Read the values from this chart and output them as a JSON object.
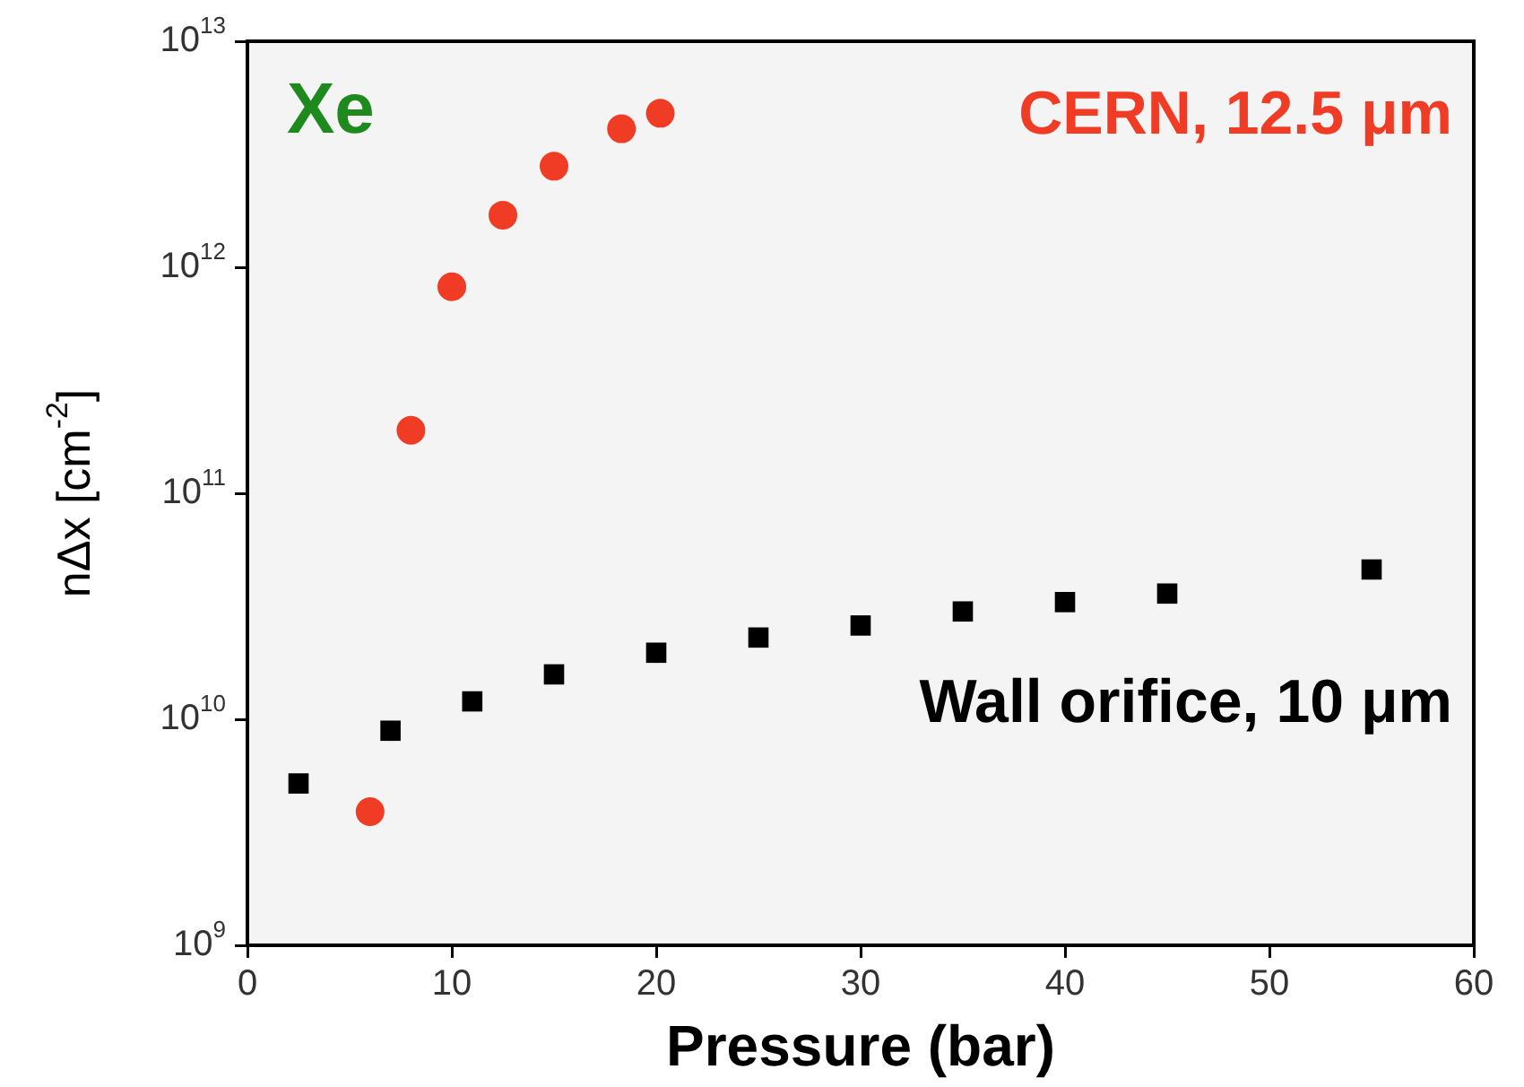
{
  "chart_data": {
    "type": "scatter",
    "xlabel": "Pressure (bar)",
    "ylabel": "nΔx [cm$^{-2}$]",
    "log": "y",
    "grid": false,
    "legend": false,
    "annotations": [
      "Xe"
    ],
    "xlim": [
      0,
      60
    ],
    "xticks": [
      0,
      10,
      20,
      30,
      40,
      50,
      60
    ],
    "ylim": [
      1000000000.0,
      10000000000000.0
    ],
    "yticks": [
      {
        "value": 1000000000.0,
        "label": "10$^{9}$"
      },
      {
        "value": 10000000000.0,
        "label": "10$^{10}$"
      },
      {
        "value": 100000000000.0,
        "label": "10$^{11}$"
      },
      {
        "value": 1000000000000.0,
        "label": "10$^{12}$"
      },
      {
        "value": 10000000000000.0,
        "label": "10$^{13}$"
      }
    ],
    "series": [
      {
        "name": "CERN, 12.5 μm",
        "color": "#f03c24",
        "marker": "circle",
        "x": [
          6,
          8,
          10,
          12.5,
          15,
          18.3,
          20.2
        ],
        "values": [
          3900000000.0,
          190000000000.0,
          820000000000.0,
          1700000000000.0,
          2800000000000.0,
          4100000000000.0,
          4800000000000.0
        ]
      },
      {
        "name": "Wall orifice, 10 μm",
        "color": "#000000",
        "marker": "square",
        "x": [
          2.5,
          7,
          11,
          15,
          20,
          25,
          30,
          35,
          40,
          45,
          55
        ],
        "values": [
          5200000000.0,
          8900000000.0,
          12000000000.0,
          15800000000.0,
          19700000000.0,
          23000000000.0,
          26000000000.0,
          30000000000.0,
          33000000000.0,
          36000000000.0,
          46000000000.0
        ]
      }
    ]
  }
}
